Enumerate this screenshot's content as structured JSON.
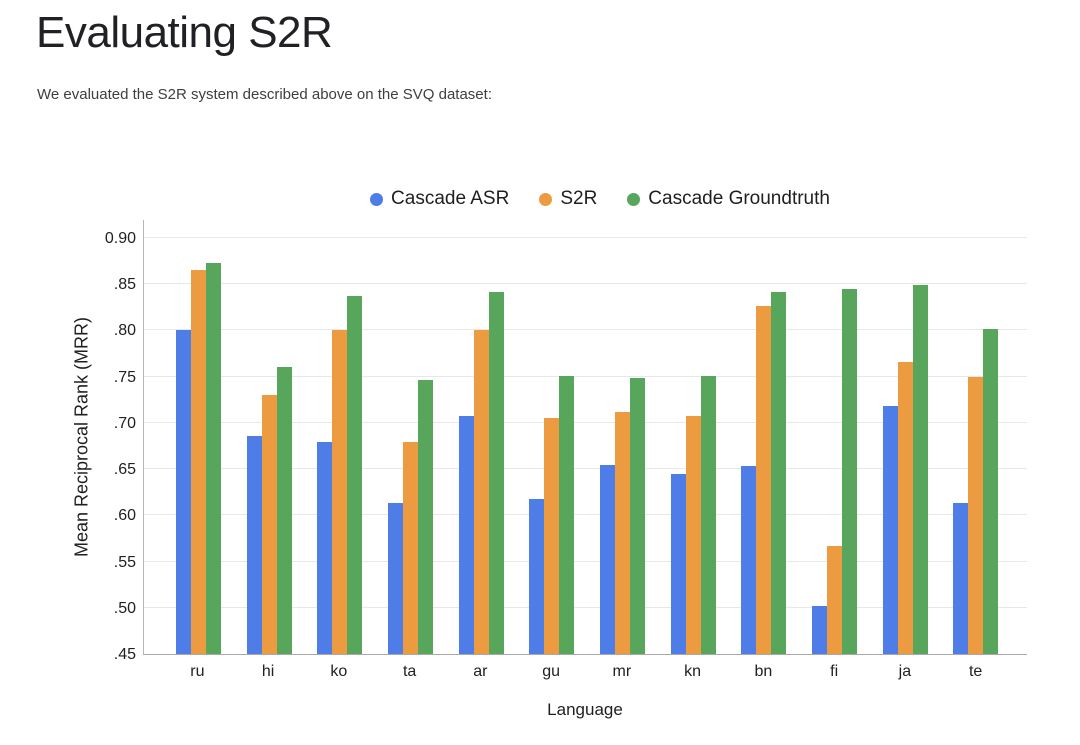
{
  "page": {
    "title": "Evaluating S2R",
    "subtitle": "We evaluated the S2R system described above on the SVQ dataset:"
  },
  "colors": {
    "cascade_asr": "#4E7DE8",
    "s2r": "#ED9B40",
    "cascade_groundtruth": "#58A55C",
    "gridline": "#e8e8e8",
    "axis_line": "#a9a9a9"
  },
  "chart_data": {
    "type": "bar",
    "title": "",
    "xlabel": "Language",
    "ylabel": "Mean Reciprocal Rank (MRR)",
    "ylim": [
      0.45,
      0.9
    ],
    "ytick_step": 0.05,
    "ytick_labels_top_to_bottom": [
      "0.90",
      ".85",
      ".80",
      ".75",
      ".70",
      ".65",
      ".60",
      ".55",
      ".50",
      ".45"
    ],
    "grid": "horizontal",
    "legend_position": "top",
    "categories": [
      "ru",
      "hi",
      "ko",
      "ta",
      "ar",
      "gu",
      "mr",
      "kn",
      "bn",
      "fi",
      "ja",
      "te"
    ],
    "series": [
      {
        "name": "Cascade ASR",
        "color": "#4E7DE8",
        "values": [
          0.8,
          0.686,
          0.679,
          0.613,
          0.708,
          0.618,
          0.654,
          0.645,
          0.653,
          0.502,
          0.718,
          0.613
        ]
      },
      {
        "name": "S2R",
        "color": "#ED9B40",
        "values": [
          0.865,
          0.73,
          0.8,
          0.679,
          0.8,
          0.705,
          0.712,
          0.707,
          0.827,
          0.567,
          0.766,
          0.75
        ]
      },
      {
        "name": "Cascade Groundtruth",
        "color": "#58A55C",
        "values": [
          0.873,
          0.761,
          0.837,
          0.746,
          0.842,
          0.751,
          0.749,
          0.751,
          0.842,
          0.845,
          0.849,
          0.802
        ]
      }
    ]
  }
}
